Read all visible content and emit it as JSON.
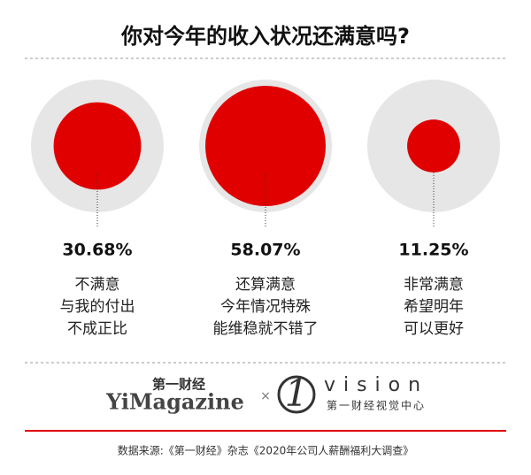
{
  "chart_data": {
    "type": "circles",
    "title": "你对今年的收入状况还满意吗?",
    "categories": [
      [
        "不满意",
        "与我的付出",
        "不成正比"
      ],
      [
        "还算满意",
        "今年情况特殊",
        "能维稳就不错了"
      ],
      [
        "非常满意",
        "希望明年",
        "可以更好"
      ]
    ],
    "values": [
      30.68,
      58.07,
      11.25
    ],
    "value_labels": [
      "30.68%",
      "58.07%",
      "11.25%"
    ],
    "color": "#e00000"
  },
  "branding": {
    "left_cn": "第一财经",
    "left_en": "YiMagazine",
    "right_en": "vision",
    "right_cn": "第一财经视觉中心"
  },
  "source": "数据来源:《第一财经》杂志《2020年公司人薪酬福利大调查》"
}
